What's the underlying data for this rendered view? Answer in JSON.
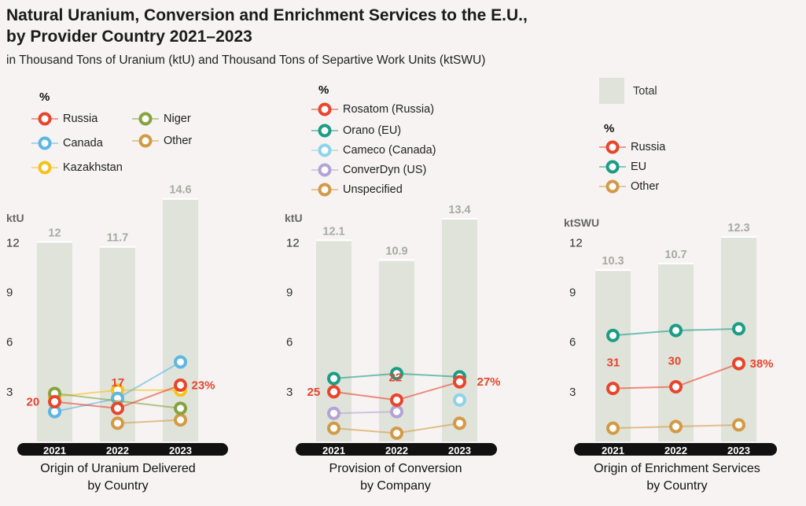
{
  "title_line1": "Natural Uranium, Conversion and Enrichment Services to the E.U.,",
  "title_line2": "by Provider Country 2021–2023",
  "subtitle": "in Thousand Tons of Uranium (ktU) and Thousand Tons of Separtive Work Units (ktSWU)",
  "total_legend": {
    "label": "Total",
    "color": "#dfe3da"
  },
  "chart_data": [
    {
      "type": "bar",
      "caption_line1": "Origin of Uranium Delivered",
      "caption_line2": "by Country",
      "unit": "ktU",
      "percent_header": "%",
      "categories": [
        "2021",
        "2022",
        "2023"
      ],
      "ylim": [
        0,
        14.6
      ],
      "yticks": [
        "3",
        "6",
        "9",
        "12"
      ],
      "totals": [
        12,
        11.7,
        14.6
      ],
      "total_labels": [
        "12",
        "11.7",
        "14.6"
      ],
      "series": [
        {
          "name": "Russia",
          "color": "#e8452c",
          "values": [
            2.4,
            2.0,
            3.4
          ],
          "labels": [
            "20",
            "17",
            "23%"
          ]
        },
        {
          "name": "Niger",
          "color": "#86a23f",
          "values": [
            2.9,
            null,
            2.0
          ]
        },
        {
          "name": "Canada",
          "color": "#5db6e3",
          "values": [
            1.8,
            2.6,
            4.8
          ]
        },
        {
          "name": "Other",
          "color": "#d39a46",
          "values": [
            null,
            1.1,
            1.3
          ]
        },
        {
          "name": "Kazakhstan",
          "color": "#f5c21b",
          "values": [
            2.7,
            3.1,
            3.1
          ]
        }
      ]
    },
    {
      "type": "bar",
      "caption_line1": "Provision of Conversion",
      "caption_line2": "by  Company",
      "unit": "ktU",
      "percent_header": "%",
      "categories": [
        "2021",
        "2022",
        "2023"
      ],
      "ylim": [
        0,
        13.4
      ],
      "yticks": [
        "3",
        "6",
        "9",
        "12"
      ],
      "totals": [
        12.1,
        10.9,
        13.4
      ],
      "total_labels": [
        "12.1",
        "10.9",
        "13.4"
      ],
      "series": [
        {
          "name": "Rosatom (Russia)",
          "color": "#e8452c",
          "values": [
            3.0,
            2.5,
            3.6
          ],
          "labels": [
            "25",
            "22",
            "27%"
          ]
        },
        {
          "name": "Orano (EU)",
          "color": "#1b9c85",
          "values": [
            3.8,
            4.1,
            3.9
          ]
        },
        {
          "name": "Cameco (Canada)",
          "color": "#8fd3ea",
          "values": [
            null,
            null,
            2.5
          ]
        },
        {
          "name": "ConverDyn (US)",
          "color": "#b4a3d6",
          "values": [
            1.7,
            1.8,
            null
          ]
        },
        {
          "name": "Unspecified",
          "color": "#d39a46",
          "values": [
            0.8,
            0.5,
            1.1
          ]
        }
      ]
    },
    {
      "type": "bar",
      "caption_line1": "Origin of Enrichment Services",
      "caption_line2": "by Country",
      "unit": "ktSWU",
      "percent_header": "%",
      "categories": [
        "2021",
        "2022",
        "2023"
      ],
      "ylim": [
        0,
        12.3
      ],
      "yticks": [
        "3",
        "6",
        "9",
        "12"
      ],
      "totals": [
        10.3,
        10.7,
        12.3
      ],
      "total_labels": [
        "10.3",
        "10.7",
        "12.3"
      ],
      "series": [
        {
          "name": "Russia",
          "color": "#e8452c",
          "values": [
            3.2,
            3.3,
            4.7
          ],
          "labels": [
            "31",
            "30",
            "38%"
          ]
        },
        {
          "name": "EU",
          "color": "#1b9c85",
          "values": [
            6.4,
            6.7,
            6.8
          ]
        },
        {
          "name": "Other",
          "color": "#d39a46",
          "values": [
            0.8,
            0.9,
            1.0
          ]
        }
      ]
    }
  ]
}
